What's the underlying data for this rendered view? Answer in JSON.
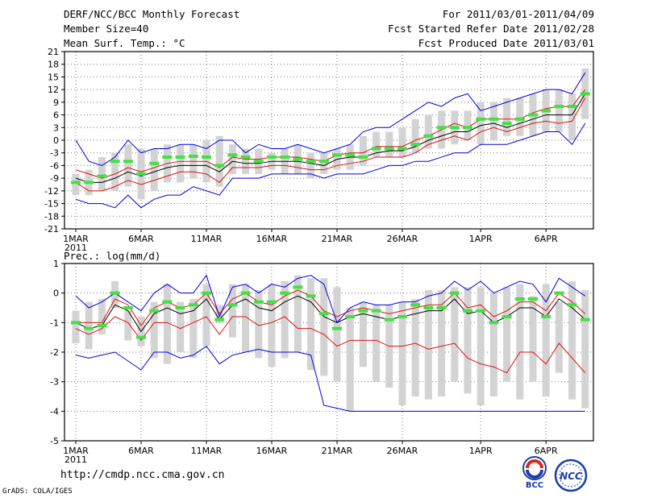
{
  "header": {
    "title": "DERF/NCC/BCC Monthly Forecast",
    "member_size": "Member Size=40",
    "variable": "Mean Surf. Temp.: °C",
    "period": "For 2011/03/01-2011/04/09",
    "refer_date": "Fcst Started Refer Date 2011/02/28",
    "produced_date": "Fcst Produced Date 2011/03/01"
  },
  "footer": {
    "url": "http://cmdp.ncc.cma.gov.cn",
    "credit": "GrADS: COLA/IGES",
    "logo_left_text": "BCC",
    "logo_right_text": "NCC"
  },
  "chart_data": [
    {
      "type": "line",
      "title": "Mean Surf. Temp.: °C",
      "xlabel": "",
      "ylabel": "",
      "ylim": [
        -21,
        21
      ],
      "yticks": [
        -21,
        -18,
        -15,
        -12,
        -9,
        -6,
        -3,
        0,
        3,
        6,
        9,
        12,
        15,
        18,
        21
      ],
      "grid": true,
      "x_tick_labels": [
        {
          "day": 1,
          "label": "1MAR",
          "sub": "2011"
        },
        {
          "day": 6,
          "label": "6MAR"
        },
        {
          "day": 11,
          "label": "11MAR"
        },
        {
          "day": 16,
          "label": "16MAR"
        },
        {
          "day": 21,
          "label": "21MAR"
        },
        {
          "day": 26,
          "label": "26MAR"
        },
        {
          "day": 32,
          "label": "1APR"
        },
        {
          "day": 37,
          "label": "6APR"
        }
      ],
      "box_range": {
        "min": [
          -13,
          -13,
          -12,
          -12,
          -11,
          -14,
          -12,
          -10,
          -10,
          -9,
          -10,
          -11,
          -8,
          -8,
          -8,
          -7,
          -8,
          -8,
          -9,
          -8,
          -7,
          -7,
          -6,
          -4,
          -4,
          -4,
          -3,
          -2,
          -2,
          -1,
          0,
          -1,
          0,
          1,
          1,
          1,
          2,
          2,
          0,
          5
        ],
        "max": [
          -8,
          -7,
          -4,
          -3,
          -1,
          -2,
          -2,
          -1,
          -1,
          -1,
          0,
          1,
          -1,
          -2,
          -2,
          -3,
          -2,
          -1,
          -3,
          -3,
          -2,
          -1,
          1,
          2,
          2,
          3,
          5,
          6,
          7,
          7,
          7,
          9,
          9,
          10,
          10,
          11,
          12,
          12,
          11,
          17
        ]
      },
      "series": [
        {
          "name": "members (green)",
          "values": [
            -10,
            -10,
            -8.5,
            -5,
            -5,
            -8,
            -5.5,
            -4,
            -4,
            -3.8,
            -4,
            -6,
            -3.5,
            -4,
            -5,
            -4,
            -4,
            -4.5,
            -5,
            -5,
            -3.5,
            -3.5,
            -4,
            -2,
            -2,
            -2,
            -1,
            1,
            3,
            3,
            3,
            5,
            5,
            4,
            5,
            6,
            7,
            8,
            8,
            11
          ]
        },
        {
          "name": "ensemble mean (black)",
          "values": [
            -9,
            -10,
            -10,
            -9,
            -7.5,
            -8.5,
            -7.5,
            -6.5,
            -6,
            -6,
            -6,
            -7.5,
            -5,
            -5.5,
            -5.5,
            -5,
            -5,
            -5,
            -5.5,
            -6,
            -4.5,
            -4,
            -4,
            -3,
            -2.5,
            -2.5,
            -1.5,
            0,
            1,
            2,
            2,
            3.5,
            4,
            3,
            4,
            5,
            6,
            6,
            6,
            11
          ]
        },
        {
          "name": "mean + spread (red)",
          "values": [
            -7,
            -8,
            -9,
            -8,
            -6.5,
            -7.5,
            -6.5,
            -5.5,
            -5,
            -5,
            -5,
            -6.5,
            -4,
            -4.5,
            -4.5,
            -4,
            -4,
            -4,
            -4.5,
            -5,
            -3.5,
            -3,
            -3,
            -1.5,
            -1.5,
            -1.5,
            0,
            1,
            2.5,
            4,
            3,
            5,
            5,
            5,
            5,
            6.5,
            7.5,
            8,
            8,
            12
          ]
        },
        {
          "name": "mean - spread (red)",
          "values": [
            -10,
            -12,
            -12,
            -11,
            -9.5,
            -10.5,
            -9.5,
            -8.5,
            -7.5,
            -7.5,
            -8,
            -10,
            -6.5,
            -6.5,
            -6.5,
            -6,
            -6,
            -6.5,
            -7,
            -7,
            -6,
            -5.5,
            -5,
            -4,
            -4,
            -4,
            -3,
            -1,
            0,
            1,
            0,
            2,
            3,
            2,
            3,
            4,
            4.5,
            4,
            4.5,
            10
          ]
        },
        {
          "name": "maximum (blue)",
          "values": [
            0,
            -5,
            -6,
            -4,
            0,
            -3,
            -2,
            -2,
            -1,
            -1,
            -2,
            0,
            0,
            -3,
            -1,
            -2,
            -2,
            -1,
            -2,
            -3,
            -2,
            -1,
            2,
            3,
            3,
            5,
            7,
            9,
            8,
            10,
            11,
            7,
            8,
            9,
            10,
            11,
            12,
            12,
            11,
            16
          ]
        },
        {
          "name": "minimum (blue)",
          "values": [
            -14,
            -15,
            -15,
            -16,
            -13,
            -16,
            -14,
            -13,
            -13,
            -11,
            -12,
            -13,
            -9,
            -9,
            -9,
            -8,
            -8,
            -8,
            -8,
            -9,
            -8,
            -8,
            -8,
            -7,
            -6,
            -6,
            -5,
            -5,
            -4,
            -3,
            -3,
            -1,
            -1,
            -1,
            0,
            1,
            2,
            2,
            -1,
            4
          ]
        }
      ]
    },
    {
      "type": "line",
      "title": "Prec.: log(mm/d)",
      "xlabel": "",
      "ylabel": "",
      "ylim": [
        -5,
        1
      ],
      "yticks": [
        -5,
        -4,
        -3,
        -2,
        -1,
        0,
        1
      ],
      "grid": true,
      "x_tick_labels": [
        {
          "day": 1,
          "label": "1MAR",
          "sub": "2011"
        },
        {
          "day": 6,
          "label": "6MAR"
        },
        {
          "day": 11,
          "label": "11MAR"
        },
        {
          "day": 16,
          "label": "16MAR"
        },
        {
          "day": 21,
          "label": "21MAR"
        },
        {
          "day": 26,
          "label": "26MAR"
        },
        {
          "day": 32,
          "label": "1APR"
        },
        {
          "day": 37,
          "label": "6APR"
        }
      ],
      "box_range": {
        "min": [
          -1.7,
          -1.9,
          -1.4,
          -0.5,
          -1.6,
          -1.8,
          -2.2,
          -2.4,
          -2.0,
          -2.2,
          -1.8,
          -1.0,
          -1.5,
          -2.0,
          -2.2,
          -2.5,
          -2.2,
          -2.0,
          -2.6,
          -2.8,
          -3.0,
          -4.0,
          -2.5,
          -3.0,
          -3.2,
          -3.8,
          -3.5,
          -3.6,
          -3.5,
          -3.0,
          -3.4,
          -3.8,
          -3.5,
          -3.0,
          -3.6,
          -3.0,
          -3.5,
          -2.7,
          -3.6,
          -3.9
        ],
        "max": [
          -0.6,
          -0.3,
          -0.2,
          0.4,
          -0.6,
          -0.8,
          -0.3,
          0.3,
          -0.3,
          -0.2,
          0.3,
          -0.4,
          0.3,
          0.3,
          0.1,
          0.3,
          0.4,
          0.6,
          0.5,
          0.5,
          0.2,
          -0.5,
          -0.3,
          -0.4,
          -0.4,
          -0.3,
          -0.2,
          0.1,
          0.1,
          0.2,
          0.2,
          0.2,
          0.0,
          0.2,
          0.3,
          -0.1,
          0.3,
          -0.3,
          0.4,
          0.1
        ]
      },
      "series": [
        {
          "name": "members (green)",
          "values": [
            -1.0,
            -1.2,
            -1.1,
            0.0,
            -0.5,
            -1.5,
            -0.6,
            -0.3,
            -0.5,
            -0.4,
            0.0,
            -0.9,
            -0.4,
            0.0,
            -0.3,
            -0.3,
            0.0,
            0.2,
            -0.1,
            -0.7,
            -1.2,
            -0.8,
            -0.6,
            -0.6,
            -0.9,
            -0.8,
            -0.4,
            -0.5,
            -0.5,
            0.0,
            -0.6,
            -0.6,
            -1.0,
            -0.8,
            -0.2,
            -0.2,
            -0.8,
            0.0,
            -0.4,
            -0.9
          ]
        },
        {
          "name": "ensemble mean (black)",
          "values": [
            -1.0,
            -1.2,
            -1.1,
            -0.4,
            -0.6,
            -1.3,
            -0.7,
            -0.5,
            -0.7,
            -0.6,
            -0.2,
            -0.9,
            -0.4,
            -0.2,
            -0.5,
            -0.6,
            -0.3,
            -0.1,
            -0.3,
            -0.8,
            -1.0,
            -0.8,
            -0.7,
            -0.8,
            -0.9,
            -0.8,
            -0.7,
            -0.6,
            -0.6,
            -0.2,
            -0.7,
            -0.6,
            -1.0,
            -0.8,
            -0.5,
            -0.5,
            -0.8,
            -0.2,
            -0.5,
            -0.9
          ]
        },
        {
          "name": "mean + spread (red)",
          "values": [
            -1.0,
            -1.0,
            -1.0,
            -0.2,
            -0.4,
            -1.1,
            -0.5,
            -0.3,
            -0.5,
            -0.4,
            0.0,
            -0.7,
            -0.2,
            0.0,
            -0.3,
            -0.4,
            -0.1,
            0.1,
            -0.1,
            -0.6,
            -0.8,
            -0.6,
            -0.5,
            -0.6,
            -0.7,
            -0.6,
            -0.5,
            -0.4,
            -0.4,
            0.0,
            -0.5,
            -0.4,
            -0.8,
            -0.6,
            -0.3,
            -0.3,
            -0.6,
            0.0,
            -0.3,
            -0.7
          ]
        },
        {
          "name": "mean - spread (red)",
          "values": [
            -1.2,
            -1.4,
            -1.2,
            -0.8,
            -1.0,
            -1.6,
            -1.0,
            -1.0,
            -1.2,
            -1.0,
            -0.8,
            -1.4,
            -0.8,
            -0.8,
            -1.1,
            -1.0,
            -0.8,
            -1.2,
            -1.2,
            -1.4,
            -1.8,
            -1.6,
            -1.6,
            -1.6,
            -1.8,
            -1.8,
            -1.7,
            -1.9,
            -1.8,
            -1.7,
            -2.2,
            -2.4,
            -2.5,
            -2.7,
            -2.0,
            -2.0,
            -2.4,
            -1.7,
            -2.2,
            -2.7
          ]
        },
        {
          "name": "maximum (blue)",
          "values": [
            -0.1,
            -0.5,
            -0.3,
            0.0,
            -0.3,
            -0.6,
            0.0,
            0.3,
            0.0,
            0.0,
            0.6,
            -0.8,
            0.2,
            0.3,
            0.0,
            0.3,
            0.2,
            0.5,
            0.6,
            0.3,
            -1.0,
            -0.5,
            -0.3,
            -0.4,
            -0.4,
            -0.3,
            -0.3,
            -0.1,
            0.0,
            0.4,
            0.1,
            0.4,
            0.0,
            0.2,
            0.4,
            0.3,
            -0.3,
            0.5,
            0.2,
            -0.1
          ]
        },
        {
          "name": "minimum (blue)",
          "values": [
            -2.1,
            -2.2,
            -2.1,
            -2.0,
            -2.3,
            -2.6,
            -2.0,
            -2.0,
            -2.2,
            -2.1,
            -1.8,
            -2.4,
            -2.1,
            -2.0,
            -1.9,
            -2.0,
            -2.0,
            -2.0,
            -2.1,
            -3.8,
            -3.9,
            -4.0,
            -4.0,
            -4.0,
            -4.0,
            -4.0,
            -4.0,
            -4.0,
            -4.0,
            -4.0,
            -4.0,
            -4.0,
            -4.0,
            -4.0,
            -4.0,
            -4.0,
            -4.0,
            -4.0,
            -4.0,
            -4.0
          ]
        }
      ]
    }
  ]
}
